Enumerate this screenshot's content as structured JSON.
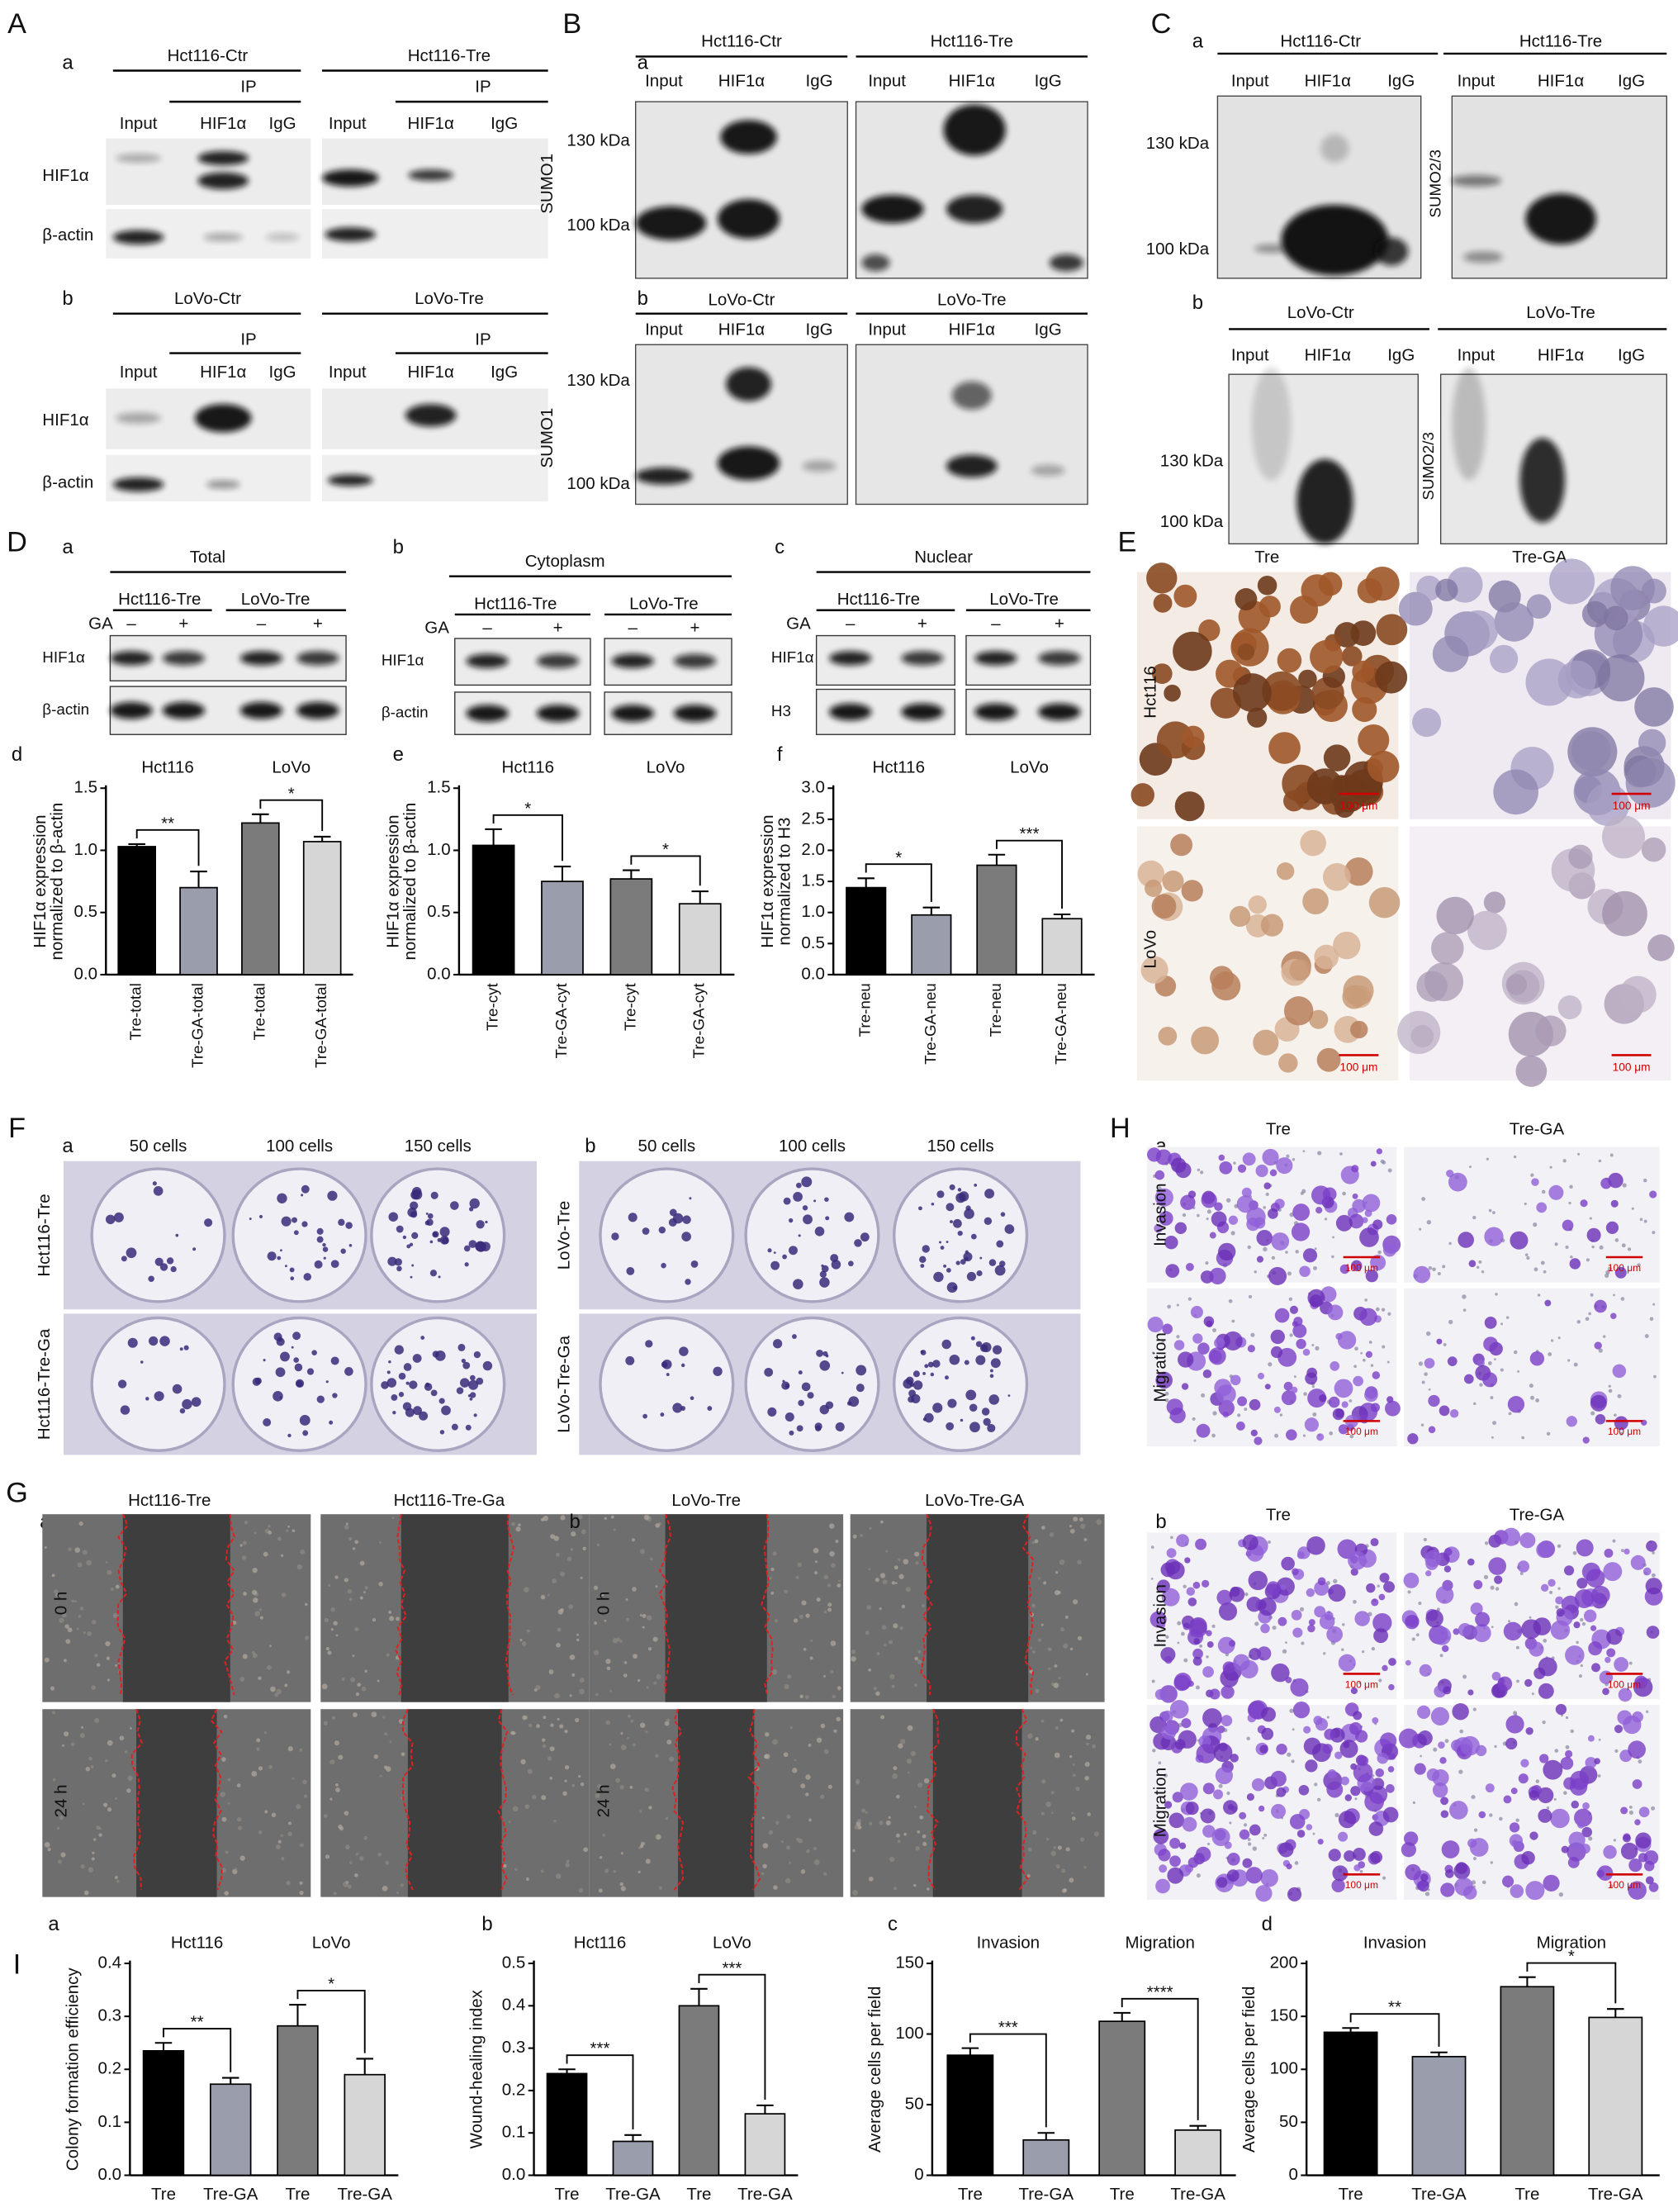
{
  "A": {
    "label": "A",
    "a": {
      "label": "a",
      "groups": [
        "Hct116-Ctr",
        "Hct116-Tre"
      ],
      "ip": "IP",
      "lanes": [
        "Input",
        "HIF1α",
        "IgG"
      ],
      "rows": [
        "HIF1α",
        "β-actin"
      ]
    },
    "b": {
      "label": "b",
      "groups": [
        "LoVo-Ctr",
        "LoVo-Tre"
      ],
      "ip": "IP",
      "lanes": [
        "Input",
        "HIF1α",
        "IgG"
      ],
      "rows": [
        "HIF1α",
        "β-actin"
      ]
    }
  },
  "B": {
    "label": "B",
    "a": {
      "label": "a",
      "groups": [
        "Hct116-Ctr",
        "Hct116-Tre"
      ],
      "lanes": [
        "Input",
        "HIF1α",
        "IgG"
      ],
      "markers": [
        "130 kDa",
        "100 kDa"
      ],
      "antibody": "SUMO1"
    },
    "b": {
      "label": "b",
      "groups": [
        "LoVo-Ctr",
        "LoVo-Tre"
      ],
      "lanes": [
        "Input",
        "HIF1α",
        "IgG"
      ],
      "markers": [
        "130 kDa",
        "100 kDa"
      ],
      "antibody": "SUMO1"
    }
  },
  "C": {
    "label": "C",
    "a": {
      "label": "a",
      "groups": [
        "Hct116-Ctr",
        "Hct116-Tre"
      ],
      "lanes": [
        "Input",
        "HIF1α",
        "IgG"
      ],
      "markers": [
        "130 kDa",
        "100 kDa"
      ],
      "antibody": "SUMO2/3"
    },
    "b": {
      "label": "b",
      "groups": [
        "LoVo-Ctr",
        "LoVo-Tre"
      ],
      "lanes": [
        "Input",
        "HIF1α",
        "IgG"
      ],
      "markers": [
        "130 kDa",
        "100 kDa"
      ],
      "antibody": "SUMO2/3"
    }
  },
  "D": {
    "label": "D",
    "a": {
      "label": "a",
      "fraction": "Total",
      "groups": [
        "Hct116-Tre",
        "LoVo-Tre"
      ],
      "treatment": "GA",
      "signs": [
        "–",
        "+"
      ],
      "rows": [
        "HIF1α",
        "β-actin"
      ]
    },
    "b": {
      "label": "b",
      "fraction": "Cytoplasm",
      "groups": [
        "Hct116-Tre",
        "LoVo-Tre"
      ],
      "treatment": "GA",
      "signs": [
        "–",
        "+"
      ],
      "rows": [
        "HIF1α",
        "β-actin"
      ]
    },
    "c": {
      "label": "c",
      "fraction": "Nuclear",
      "groups": [
        "Hct116-Tre",
        "LoVo-Tre"
      ],
      "treatment": "GA",
      "signs": [
        "–",
        "+"
      ],
      "rows": [
        "HIF1α",
        "H3"
      ]
    }
  },
  "E": {
    "label": "E",
    "columns": [
      "Tre",
      "Tre-GA"
    ],
    "rows": [
      "Hct116",
      "LoVo"
    ],
    "scale": "100 μm"
  },
  "F": {
    "label": "F",
    "a": {
      "label": "a",
      "columns": [
        "50 cells",
        "100 cells",
        "150 cells"
      ],
      "rows": [
        "Hct116-Tre",
        "Hct116-Tre-Ga"
      ]
    },
    "b": {
      "label": "b",
      "columns": [
        "50 cells",
        "100 cells",
        "150 cells"
      ],
      "rows": [
        "LoVo-Tre",
        "LoVo-Tre-Ga"
      ]
    }
  },
  "G": {
    "label": "G",
    "a": {
      "label": "a",
      "columns": [
        "Hct116-Tre",
        "Hct116-Tre-Ga"
      ],
      "rows": [
        "0 h",
        "24 h"
      ]
    },
    "b": {
      "label": "b",
      "columns": [
        "LoVo-Tre",
        "LoVo-Tre-GA"
      ],
      "rows": [
        "0 h",
        "24 h"
      ]
    }
  },
  "H": {
    "label": "H",
    "a": {
      "label": "a",
      "columns": [
        "Tre",
        "Tre-GA"
      ],
      "rows": [
        "Invasion",
        "Migration"
      ],
      "scale": "100 μm"
    },
    "b": {
      "label": "b",
      "columns": [
        "Tre",
        "Tre-GA"
      ],
      "rows": [
        "Invasion",
        "Migration"
      ],
      "scale": "100 μm"
    }
  },
  "I": {
    "label": "I"
  },
  "chart_data": [
    {
      "type": "bar",
      "label": "d",
      "ylabel": [
        "HIF1α expression",
        "normalized to β-actin"
      ],
      "ylim": [
        0,
        1.5
      ],
      "yticks": [
        {
          "value": 0,
          "label": "0.0"
        },
        0.5,
        {
          "value": 1,
          "label": "1.0"
        },
        1.5
      ],
      "groups": [
        {
          "name": "Hct116",
          "categories": [
            "Tre-total",
            "Tre-GA-total"
          ],
          "values": [
            1.03,
            0.7
          ],
          "errors": [
            0.02,
            0.13
          ],
          "colors": [
            "#000000",
            "#9a9dab"
          ],
          "significance": "**"
        },
        {
          "name": "LoVo",
          "categories": [
            "Tre-total",
            "Tre-GA-total"
          ],
          "values": [
            1.22,
            1.07
          ],
          "errors": [
            0.07,
            0.04
          ],
          "colors": [
            "#7b7b7b",
            "#d6d6d6"
          ],
          "significance": "*"
        }
      ]
    },
    {
      "type": "bar",
      "label": "e",
      "ylabel": [
        "HIF1α expression",
        "normalized to β-actin"
      ],
      "ylim": [
        0,
        1.5
      ],
      "yticks": [
        {
          "value": 0,
          "label": "0.0"
        },
        0.5,
        {
          "value": 1,
          "label": "1.0"
        },
        1.5
      ],
      "groups": [
        {
          "name": "Hct116",
          "categories": [
            "Tre-cyt",
            "Tre-GA-cyt"
          ],
          "values": [
            1.04,
            0.75
          ],
          "errors": [
            0.13,
            0.12
          ],
          "colors": [
            "#000000",
            "#9a9dab"
          ],
          "significance": "*"
        },
        {
          "name": "LoVo",
          "categories": [
            "Tre-cyt",
            "Tre-GA-cyt"
          ],
          "values": [
            0.77,
            0.57
          ],
          "errors": [
            0.07,
            0.1
          ],
          "colors": [
            "#7b7b7b",
            "#d6d6d6"
          ],
          "significance": "*"
        }
      ]
    },
    {
      "type": "bar",
      "label": "f",
      "ylabel": [
        "HIF1α expression",
        "normalized to H3"
      ],
      "ylim": [
        0,
        3
      ],
      "yticks": [
        {
          "value": 0,
          "label": "0.0"
        },
        0.5,
        {
          "value": 1,
          "label": "1.0"
        },
        1.5,
        {
          "value": 2,
          "label": "2.0"
        },
        2.5,
        {
          "value": 3,
          "label": "3.0"
        }
      ],
      "groups": [
        {
          "name": "Hct116",
          "categories": [
            "Tre-neu",
            "Tre-GA-neu"
          ],
          "values": [
            1.4,
            0.96
          ],
          "errors": [
            0.15,
            0.12
          ],
          "colors": [
            "#000000",
            "#9a9dab"
          ],
          "significance": "*"
        },
        {
          "name": "LoVo",
          "categories": [
            "Tre-neu",
            "Tre-GA-neu"
          ],
          "values": [
            1.76,
            0.9
          ],
          "errors": [
            0.17,
            0.07
          ],
          "colors": [
            "#7b7b7b",
            "#d6d6d6"
          ],
          "significance": "***"
        }
      ]
    },
    {
      "type": "bar",
      "label": "a",
      "ylabel": [
        "Colony formation efficiency"
      ],
      "ylim": [
        0,
        0.4
      ],
      "yticks": [
        {
          "value": 0,
          "label": "0.0"
        },
        0.1,
        0.2,
        0.3,
        0.4
      ],
      "groups": [
        {
          "name": "Hct116",
          "categories": [
            "Tre",
            "Tre-GA"
          ],
          "values": [
            0.235,
            0.172
          ],
          "errors": [
            0.015,
            0.012
          ],
          "colors": [
            "#000000",
            "#9a9dab"
          ],
          "significance": "**"
        },
        {
          "name": "LoVo",
          "categories": [
            "Tre",
            "Tre-GA"
          ],
          "values": [
            0.282,
            0.19
          ],
          "errors": [
            0.04,
            0.03
          ],
          "colors": [
            "#7b7b7b",
            "#d6d6d6"
          ],
          "significance": "*"
        }
      ]
    },
    {
      "type": "bar",
      "label": "b",
      "ylabel": [
        "Wound-healing index"
      ],
      "ylim": [
        0,
        0.5
      ],
      "yticks": [
        {
          "value": 0,
          "label": "0.0"
        },
        0.1,
        0.2,
        0.3,
        0.4,
        0.5
      ],
      "groups": [
        {
          "name": "Hct116",
          "categories": [
            "Tre",
            "Tre-GA"
          ],
          "values": [
            0.24,
            0.08
          ],
          "errors": [
            0.01,
            0.015
          ],
          "colors": [
            "#000000",
            "#9a9dab"
          ],
          "significance": "***"
        },
        {
          "name": "LoVo",
          "categories": [
            "Tre",
            "Tre-GA"
          ],
          "values": [
            0.4,
            0.145
          ],
          "errors": [
            0.04,
            0.02
          ],
          "colors": [
            "#7b7b7b",
            "#d6d6d6"
          ],
          "significance": "***"
        }
      ]
    },
    {
      "type": "bar",
      "label": "c",
      "ylabel": [
        "Average cells per field"
      ],
      "ylim": [
        0,
        150
      ],
      "yticks": [
        0,
        50,
        100,
        150
      ],
      "groups": [
        {
          "name": "Invasion",
          "categories": [
            "Tre",
            "Tre-GA"
          ],
          "values": [
            85,
            25
          ],
          "errors": [
            5,
            5
          ],
          "colors": [
            "#000000",
            "#9a9dab"
          ],
          "significance": "***"
        },
        {
          "name": "Migration",
          "categories": [
            "Tre",
            "Tre-GA"
          ],
          "values": [
            109,
            32
          ],
          "errors": [
            6,
            3
          ],
          "colors": [
            "#7b7b7b",
            "#d6d6d6"
          ],
          "significance": "****"
        }
      ]
    },
    {
      "type": "bar",
      "label": "d",
      "ylabel": [
        "Average cells per field"
      ],
      "ylim": [
        0,
        200
      ],
      "yticks": [
        0,
        50,
        100,
        150,
        200
      ],
      "groups": [
        {
          "name": "Invasion",
          "categories": [
            "Tre",
            "Tre-GA"
          ],
          "values": [
            135,
            112
          ],
          "errors": [
            4,
            4
          ],
          "colors": [
            "#000000",
            "#9a9dab"
          ],
          "significance": "**"
        },
        {
          "name": "Migration",
          "categories": [
            "Tre",
            "Tre-GA"
          ],
          "values": [
            178,
            149
          ],
          "errors": [
            9,
            8
          ],
          "colors": [
            "#7b7b7b",
            "#d6d6d6"
          ],
          "significance": "*"
        }
      ]
    }
  ]
}
